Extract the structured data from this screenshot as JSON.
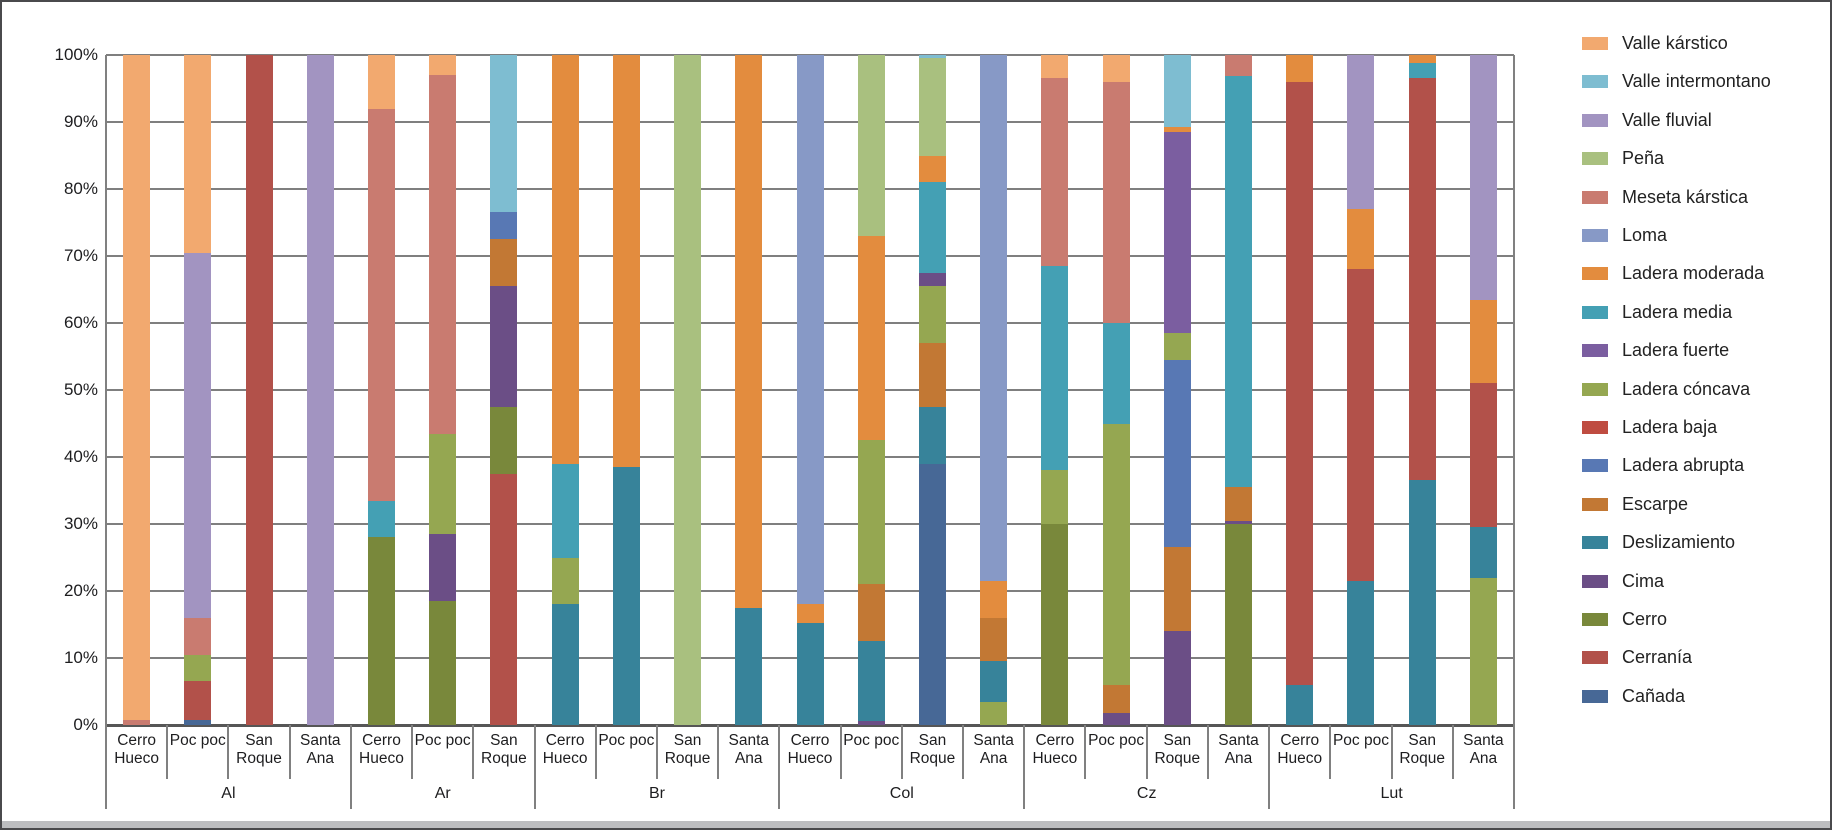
{
  "chart_data": {
    "type": "bar",
    "variant": "stacked-100-percent",
    "title": "",
    "xlabel": "",
    "ylabel": "",
    "ylim": [
      0,
      100
    ],
    "grid": true,
    "legend_position": "right",
    "y_ticks": [
      "0%",
      "10%",
      "20%",
      "30%",
      "40%",
      "50%",
      "60%",
      "70%",
      "80%",
      "90%",
      "100%"
    ],
    "legend": [
      {
        "label": "Valle kárstico",
        "color": "#F2A96F"
      },
      {
        "label": "Valle intermontano",
        "color": "#7EBDD1"
      },
      {
        "label": "Valle fluvial",
        "color": "#A294C1"
      },
      {
        "label": "Peña",
        "color": "#A9C07F"
      },
      {
        "label": "Meseta kárstica",
        "color": "#C97B70"
      },
      {
        "label": "Loma",
        "color": "#8799C6"
      },
      {
        "label": "Ladera moderada",
        "color": "#E38C3E"
      },
      {
        "label": "Ladera media",
        "color": "#44A0B4"
      },
      {
        "label": "Ladera fuerte",
        "color": "#7B5EA0"
      },
      {
        "label": "Ladera cóncava",
        "color": "#95A751"
      },
      {
        "label": "Ladera baja",
        "color": "#BF4C41"
      },
      {
        "label": "Ladera abrupta",
        "color": "#5878B4"
      },
      {
        "label": "Escarpe",
        "color": "#C27834"
      },
      {
        "label": "Deslizamiento",
        "color": "#37839A"
      },
      {
        "label": "Cima",
        "color": "#6B4E86"
      },
      {
        "label": "Cerro",
        "color": "#79883B"
      },
      {
        "label": "Cerranía",
        "color": "#B2514A"
      },
      {
        "label": "Cañada",
        "color": "#476896"
      }
    ],
    "groups": [
      {
        "label": "Al",
        "bars": [
          {
            "label_lines": [
              "Cerro",
              "Hueco"
            ],
            "segments": [
              [
                "Meseta kárstica",
                0.7
              ],
              [
                "Valle kárstico",
                99.3
              ]
            ]
          },
          {
            "label_lines": [
              "Poc poc"
            ],
            "segments": [
              [
                "Cañada",
                0.7
              ],
              [
                "Cerranía",
                5.8
              ],
              [
                "Ladera cóncava",
                4
              ],
              [
                "Meseta kárstica",
                5.5
              ],
              [
                "Valle fluvial",
                54.5
              ],
              [
                "Valle kárstico",
                29.5
              ]
            ]
          },
          {
            "label_lines": [
              "San",
              "Roque"
            ],
            "segments": [
              [
                "Cerranía",
                100
              ]
            ]
          },
          {
            "label_lines": [
              "Santa",
              "Ana"
            ],
            "segments": [
              [
                "Valle fluvial",
                100
              ]
            ]
          }
        ]
      },
      {
        "label": "Ar",
        "bars": [
          {
            "label_lines": [
              "Cerro",
              "Hueco"
            ],
            "segments": [
              [
                "Cerro",
                28
              ],
              [
                "Ladera media",
                5.5
              ],
              [
                "Meseta kárstica",
                58.5
              ],
              [
                "Valle kárstico",
                8
              ]
            ]
          },
          {
            "label_lines": [
              "Poc poc"
            ],
            "segments": [
              [
                "Cerro",
                18.5
              ],
              [
                "Cima",
                10
              ],
              [
                "Ladera cóncava",
                15
              ],
              [
                "Meseta kárstica",
                53.5
              ],
              [
                "Valle kárstico",
                3
              ]
            ]
          },
          {
            "label_lines": [
              "San",
              "Roque"
            ],
            "segments": [
              [
                "Cerranía",
                37.5
              ],
              [
                "Cerro",
                10
              ],
              [
                "Cima",
                18
              ],
              [
                "Escarpe",
                7
              ],
              [
                "Ladera abrupta",
                4
              ],
              [
                "Valle intermontano",
                23.5
              ]
            ]
          }
        ]
      },
      {
        "label": "Br",
        "bars": [
          {
            "label_lines": [
              "Cerro",
              "Hueco"
            ],
            "segments": [
              [
                "Deslizamiento",
                18
              ],
              [
                "Ladera cóncava",
                7
              ],
              [
                "Ladera media",
                14
              ],
              [
                "Ladera moderada",
                61
              ]
            ]
          },
          {
            "label_lines": [
              "Poc poc"
            ],
            "segments": [
              [
                "Deslizamiento",
                38.5
              ],
              [
                "Ladera moderada",
                61.5
              ]
            ]
          },
          {
            "label_lines": [
              "San",
              "Roque"
            ],
            "segments": [
              [
                "Peña",
                100
              ]
            ]
          },
          {
            "label_lines": [
              "Santa",
              "Ana"
            ],
            "segments": [
              [
                "Deslizamiento",
                17.5
              ],
              [
                "Ladera moderada",
                82.5
              ]
            ]
          }
        ]
      },
      {
        "label": "Col",
        "bars": [
          {
            "label_lines": [
              "Cerro",
              "Hueco"
            ],
            "segments": [
              [
                "Deslizamiento",
                15.3
              ],
              [
                "Ladera moderada",
                2.7
              ],
              [
                "Loma",
                82
              ]
            ]
          },
          {
            "label_lines": [
              "Poc poc"
            ],
            "segments": [
              [
                "Cima",
                0.6
              ],
              [
                "Deslizamiento",
                12
              ],
              [
                "Escarpe",
                8.4
              ],
              [
                "Ladera cóncava",
                21.5
              ],
              [
                "Ladera moderada",
                30.5
              ],
              [
                "Peña",
                27
              ]
            ]
          },
          {
            "label_lines": [
              "San",
              "Roque"
            ],
            "segments": [
              [
                "Cañada",
                39
              ],
              [
                "Deslizamiento",
                8.5
              ],
              [
                "Escarpe",
                9.5
              ],
              [
                "Ladera cóncava",
                8.5
              ],
              [
                "Cima",
                2
              ],
              [
                "Ladera media",
                13.5
              ],
              [
                "Ladera moderada",
                4
              ],
              [
                "Peña",
                14.5
              ],
              [
                "Valle intermontano",
                0.5
              ]
            ]
          },
          {
            "label_lines": [
              "Santa",
              "Ana"
            ],
            "segments": [
              [
                "Ladera cóncava",
                3.5
              ],
              [
                "Deslizamiento",
                6
              ],
              [
                "Escarpe",
                6.5
              ],
              [
                "Ladera moderada",
                5.5
              ],
              [
                "Loma",
                78.5
              ]
            ]
          }
        ]
      },
      {
        "label": "Cz",
        "bars": [
          {
            "label_lines": [
              "Cerro",
              "Hueco"
            ],
            "segments": [
              [
                "Cerro",
                30
              ],
              [
                "Ladera cóncava",
                8
              ],
              [
                "Ladera media",
                30.5
              ],
              [
                "Meseta kárstica",
                28
              ],
              [
                "Valle kárstico",
                3.5
              ]
            ]
          },
          {
            "label_lines": [
              "Poc poc"
            ],
            "segments": [
              [
                "Cima",
                1.8
              ],
              [
                "Escarpe",
                4.2
              ],
              [
                "Ladera cóncava",
                39
              ],
              [
                "Ladera media",
                15
              ],
              [
                "Meseta kárstica",
                36
              ],
              [
                "Valle kárstico",
                4
              ]
            ]
          },
          {
            "label_lines": [
              "San",
              "Roque"
            ],
            "segments": [
              [
                "Cima",
                14
              ],
              [
                "Escarpe",
                12.5
              ],
              [
                "Ladera abrupta",
                28
              ],
              [
                "Ladera cóncava",
                4
              ],
              [
                "Ladera fuerte",
                30
              ],
              [
                "Ladera moderada",
                0.8
              ],
              [
                "Valle intermontano",
                10.7
              ]
            ]
          },
          {
            "label_lines": [
              "Santa",
              "Ana"
            ],
            "segments": [
              [
                "Cerro",
                30
              ],
              [
                "Cima",
                0.5
              ],
              [
                "Escarpe",
                5
              ],
              [
                "Ladera media",
                61.3
              ],
              [
                "Meseta kárstica",
                3.2
              ]
            ]
          }
        ]
      },
      {
        "label": "Lut",
        "bars": [
          {
            "label_lines": [
              "Cerro",
              "Hueco"
            ],
            "segments": [
              [
                "Deslizamiento",
                6
              ],
              [
                "Cerranía",
                90
              ],
              [
                "Ladera moderada",
                4
              ]
            ]
          },
          {
            "label_lines": [
              "Poc poc"
            ],
            "segments": [
              [
                "Deslizamiento",
                21.5
              ],
              [
                "Cerranía",
                46.5
              ],
              [
                "Ladera moderada",
                9
              ],
              [
                "Valle fluvial",
                23
              ]
            ]
          },
          {
            "label_lines": [
              "San",
              "Roque"
            ],
            "segments": [
              [
                "Deslizamiento",
                36.5
              ],
              [
                "Cerranía",
                60
              ],
              [
                "Ladera media",
                2.3
              ],
              [
                "Ladera moderada",
                1.2
              ]
            ]
          },
          {
            "label_lines": [
              "Santa",
              "Ana"
            ],
            "segments": [
              [
                "Ladera cóncava",
                22
              ],
              [
                "Deslizamiento",
                7.5
              ],
              [
                "Cerranía",
                21.5
              ],
              [
                "Ladera moderada",
                12.5
              ],
              [
                "Valle fluvial",
                36.5
              ]
            ]
          }
        ]
      }
    ]
  }
}
